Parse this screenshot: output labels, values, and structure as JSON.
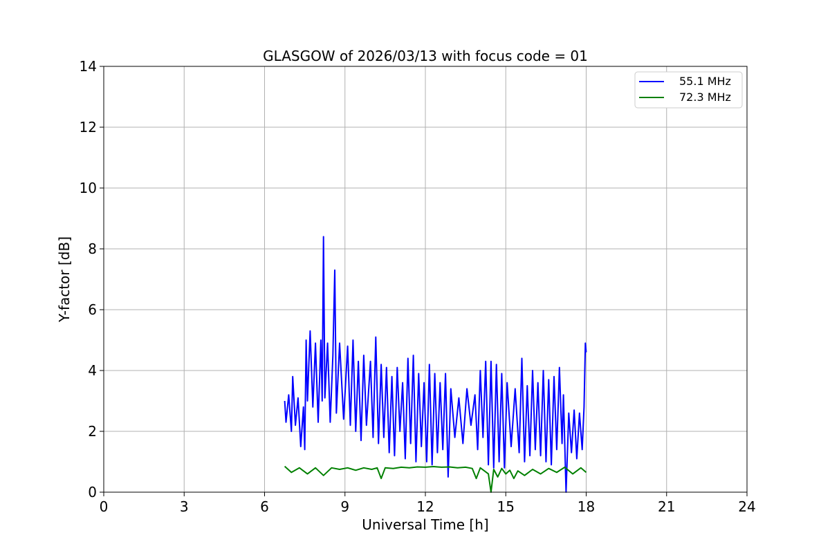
{
  "chart_data": {
    "type": "line",
    "title": "GLASGOW of 2026/03/13 with focus code = 01",
    "xlabel": "Universal Time [h]",
    "ylabel": "Y-factor [dB]",
    "xlim": [
      0,
      24
    ],
    "ylim": [
      0,
      14
    ],
    "xticks": [
      0,
      3,
      6,
      9,
      12,
      15,
      18,
      21,
      24
    ],
    "yticks": [
      0,
      2,
      4,
      6,
      8,
      10,
      12,
      14
    ],
    "grid": true,
    "legend_position": "top-right",
    "series": [
      {
        "name": "55.1 MHz",
        "color": "#0000ff",
        "points": [
          [
            6.75,
            3.0
          ],
          [
            6.8,
            2.3
          ],
          [
            6.9,
            3.2
          ],
          [
            7.0,
            2.0
          ],
          [
            7.05,
            3.8
          ],
          [
            7.15,
            2.2
          ],
          [
            7.25,
            3.1
          ],
          [
            7.35,
            1.5
          ],
          [
            7.45,
            2.8
          ],
          [
            7.5,
            1.4
          ],
          [
            7.55,
            5.0
          ],
          [
            7.6,
            3.0
          ],
          [
            7.7,
            5.3
          ],
          [
            7.8,
            2.8
          ],
          [
            7.9,
            4.9
          ],
          [
            8.0,
            2.3
          ],
          [
            8.1,
            5.0
          ],
          [
            8.15,
            3.0
          ],
          [
            8.2,
            8.4
          ],
          [
            8.25,
            3.1
          ],
          [
            8.35,
            4.9
          ],
          [
            8.45,
            2.3
          ],
          [
            8.55,
            4.5
          ],
          [
            8.62,
            7.3
          ],
          [
            8.68,
            2.6
          ],
          [
            8.8,
            4.9
          ],
          [
            8.95,
            2.4
          ],
          [
            9.1,
            4.8
          ],
          [
            9.2,
            2.2
          ],
          [
            9.3,
            5.0
          ],
          [
            9.4,
            2.0
          ],
          [
            9.5,
            4.3
          ],
          [
            9.6,
            1.7
          ],
          [
            9.7,
            4.5
          ],
          [
            9.8,
            2.2
          ],
          [
            9.95,
            4.3
          ],
          [
            10.05,
            1.8
          ],
          [
            10.15,
            5.1
          ],
          [
            10.25,
            1.6
          ],
          [
            10.35,
            4.2
          ],
          [
            10.45,
            1.8
          ],
          [
            10.55,
            4.1
          ],
          [
            10.65,
            1.3
          ],
          [
            10.75,
            3.8
          ],
          [
            10.85,
            1.2
          ],
          [
            10.95,
            4.1
          ],
          [
            11.05,
            2.0
          ],
          [
            11.15,
            3.6
          ],
          [
            11.25,
            1.1
          ],
          [
            11.35,
            4.4
          ],
          [
            11.45,
            1.6
          ],
          [
            11.55,
            4.5
          ],
          [
            11.65,
            1.0
          ],
          [
            11.75,
            3.9
          ],
          [
            11.85,
            1.5
          ],
          [
            11.95,
            3.6
          ],
          [
            12.05,
            1.0
          ],
          [
            12.15,
            4.2
          ],
          [
            12.25,
            0.9
          ],
          [
            12.35,
            3.9
          ],
          [
            12.45,
            1.3
          ],
          [
            12.55,
            3.6
          ],
          [
            12.65,
            1.4
          ],
          [
            12.75,
            3.9
          ],
          [
            12.85,
            0.5
          ],
          [
            12.95,
            3.4
          ],
          [
            13.1,
            1.8
          ],
          [
            13.25,
            3.1
          ],
          [
            13.4,
            1.6
          ],
          [
            13.55,
            3.4
          ],
          [
            13.7,
            2.2
          ],
          [
            13.85,
            3.2
          ],
          [
            13.95,
            1.4
          ],
          [
            14.05,
            4.0
          ],
          [
            14.15,
            1.8
          ],
          [
            14.25,
            4.3
          ],
          [
            14.35,
            0.9
          ],
          [
            14.45,
            4.3
          ],
          [
            14.55,
            0.8
          ],
          [
            14.65,
            4.2
          ],
          [
            14.75,
            1.0
          ],
          [
            14.85,
            3.9
          ],
          [
            14.95,
            0.8
          ],
          [
            15.05,
            3.6
          ],
          [
            15.2,
            1.5
          ],
          [
            15.35,
            3.4
          ],
          [
            15.5,
            1.3
          ],
          [
            15.6,
            4.4
          ],
          [
            15.7,
            1.0
          ],
          [
            15.8,
            3.5
          ],
          [
            15.9,
            1.2
          ],
          [
            16.0,
            4.0
          ],
          [
            16.1,
            1.4
          ],
          [
            16.2,
            3.6
          ],
          [
            16.3,
            1.2
          ],
          [
            16.4,
            4.0
          ],
          [
            16.5,
            1.0
          ],
          [
            16.6,
            3.7
          ],
          [
            16.7,
            0.9
          ],
          [
            16.8,
            3.8
          ],
          [
            16.9,
            1.4
          ],
          [
            17.0,
            4.1
          ],
          [
            17.1,
            1.6
          ],
          [
            17.15,
            3.2
          ],
          [
            17.25,
            0.0
          ],
          [
            17.35,
            2.6
          ],
          [
            17.45,
            1.3
          ],
          [
            17.55,
            2.7
          ],
          [
            17.65,
            1.1
          ],
          [
            17.75,
            2.6
          ],
          [
            17.85,
            1.4
          ],
          [
            17.92,
            2.8
          ],
          [
            17.97,
            4.9
          ],
          [
            18.0,
            4.6
          ]
        ]
      },
      {
        "name": "72.3 MHz",
        "color": "#008000",
        "points": [
          [
            6.75,
            0.85
          ],
          [
            7.0,
            0.65
          ],
          [
            7.3,
            0.8
          ],
          [
            7.6,
            0.6
          ],
          [
            7.9,
            0.8
          ],
          [
            8.2,
            0.55
          ],
          [
            8.5,
            0.8
          ],
          [
            8.8,
            0.75
          ],
          [
            9.1,
            0.8
          ],
          [
            9.4,
            0.72
          ],
          [
            9.7,
            0.8
          ],
          [
            10.0,
            0.75
          ],
          [
            10.2,
            0.8
          ],
          [
            10.35,
            0.45
          ],
          [
            10.5,
            0.8
          ],
          [
            10.8,
            0.78
          ],
          [
            11.1,
            0.82
          ],
          [
            11.4,
            0.8
          ],
          [
            11.7,
            0.83
          ],
          [
            12.0,
            0.82
          ],
          [
            12.3,
            0.84
          ],
          [
            12.6,
            0.82
          ],
          [
            12.9,
            0.83
          ],
          [
            13.2,
            0.8
          ],
          [
            13.5,
            0.82
          ],
          [
            13.75,
            0.78
          ],
          [
            13.9,
            0.45
          ],
          [
            14.05,
            0.8
          ],
          [
            14.2,
            0.7
          ],
          [
            14.35,
            0.6
          ],
          [
            14.45,
            0.0
          ],
          [
            14.55,
            0.75
          ],
          [
            14.7,
            0.5
          ],
          [
            14.85,
            0.78
          ],
          [
            15.0,
            0.6
          ],
          [
            15.15,
            0.72
          ],
          [
            15.3,
            0.45
          ],
          [
            15.45,
            0.7
          ],
          [
            15.7,
            0.55
          ],
          [
            16.0,
            0.75
          ],
          [
            16.3,
            0.6
          ],
          [
            16.6,
            0.78
          ],
          [
            16.9,
            0.65
          ],
          [
            17.2,
            0.82
          ],
          [
            17.5,
            0.6
          ],
          [
            17.8,
            0.8
          ],
          [
            18.0,
            0.65
          ]
        ]
      }
    ]
  }
}
